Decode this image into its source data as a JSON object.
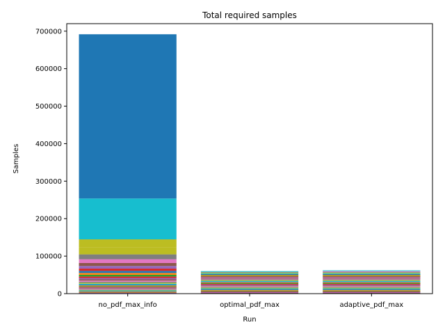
{
  "chart_data": {
    "type": "bar",
    "stacked": true,
    "title": "Total required samples",
    "xlabel": "Run",
    "ylabel": "Samples",
    "categories": [
      "no_pdf_max_info",
      "optimal_pdf_max",
      "adaptive_pdf_max"
    ],
    "ylim": [
      0,
      720000
    ],
    "yticks": [
      0,
      100000,
      200000,
      300000,
      400000,
      500000,
      600000,
      700000
    ],
    "ytick_labels": [
      "0",
      "100000",
      "200000",
      "300000",
      "400000",
      "500000",
      "600000",
      "700000"
    ],
    "grid": false,
    "legend": "none",
    "palette": [
      "#1f77b4",
      "#ff7f0e",
      "#2ca02c",
      "#d62728",
      "#9467bd",
      "#8c564b",
      "#e377c2",
      "#7f7f7f",
      "#bcbd22",
      "#17becf"
    ],
    "stacks": [
      {
        "category": "no_pdf_max_info",
        "segments": [
          {
            "value": 1000,
            "color": "#8c564b"
          },
          {
            "value": 1000,
            "color": "#9467bd"
          },
          {
            "value": 1200,
            "color": "#d62728"
          },
          {
            "value": 1200,
            "color": "#2ca02c"
          },
          {
            "value": 1300,
            "color": "#ff7f0e"
          },
          {
            "value": 1300,
            "color": "#1f77b4"
          },
          {
            "value": 1400,
            "color": "#17becf"
          },
          {
            "value": 1400,
            "color": "#bcbd22"
          },
          {
            "value": 1500,
            "color": "#7f7f7f"
          },
          {
            "value": 1500,
            "color": "#e377c2"
          },
          {
            "value": 1600,
            "color": "#8c564b"
          },
          {
            "value": 1700,
            "color": "#9467bd"
          },
          {
            "value": 1800,
            "color": "#d62728"
          },
          {
            "value": 1900,
            "color": "#2ca02c"
          },
          {
            "value": 2000,
            "color": "#ff7f0e"
          },
          {
            "value": 2200,
            "color": "#1f77b4"
          },
          {
            "value": 2400,
            "color": "#17becf"
          },
          {
            "value": 2600,
            "color": "#bcbd22"
          },
          {
            "value": 2800,
            "color": "#7f7f7f"
          },
          {
            "value": 3000,
            "color": "#e377c2"
          },
          {
            "value": 3300,
            "color": "#8c564b"
          },
          {
            "value": 3600,
            "color": "#9467bd"
          },
          {
            "value": 4000,
            "color": "#d62728"
          },
          {
            "value": 4500,
            "color": "#2ca02c"
          },
          {
            "value": 5000,
            "color": "#ff7f0e"
          },
          {
            "value": 5500,
            "color": "#1f77b4"
          },
          {
            "value": 6000,
            "color": "#d62728"
          },
          {
            "value": 7000,
            "color": "#9467bd"
          },
          {
            "value": 8000,
            "color": "#8c564b"
          },
          {
            "value": 10000,
            "color": "#e377c2"
          },
          {
            "value": 13000,
            "color": "#7f7f7f"
          },
          {
            "value": 18000,
            "color": "#bcbd22"
          },
          {
            "value": 22000,
            "color": "#bcbd22"
          },
          {
            "value": 109000,
            "color": "#17becf"
          },
          {
            "value": 438000,
            "color": "#1f77b4"
          }
        ]
      },
      {
        "category": "optimal_pdf_max",
        "segments": [
          {
            "value": 2000,
            "color": "#8c564b"
          },
          {
            "value": 2000,
            "color": "#9467bd"
          },
          {
            "value": 2000,
            "color": "#d62728"
          },
          {
            "value": 2000,
            "color": "#2ca02c"
          },
          {
            "value": 2000,
            "color": "#ff7f0e"
          },
          {
            "value": 2000,
            "color": "#1f77b4"
          },
          {
            "value": 2000,
            "color": "#17becf"
          },
          {
            "value": 2000,
            "color": "#bcbd22"
          },
          {
            "value": 2000,
            "color": "#7f7f7f"
          },
          {
            "value": 2000,
            "color": "#e377c2"
          },
          {
            "value": 2000,
            "color": "#8c564b"
          },
          {
            "value": 2000,
            "color": "#9467bd"
          },
          {
            "value": 2000,
            "color": "#d62728"
          },
          {
            "value": 2000,
            "color": "#2ca02c"
          },
          {
            "value": 2000,
            "color": "#ff7f0e"
          },
          {
            "value": 2000,
            "color": "#1f77b4"
          },
          {
            "value": 2000,
            "color": "#17becf"
          },
          {
            "value": 2000,
            "color": "#bcbd22"
          },
          {
            "value": 2000,
            "color": "#7f7f7f"
          },
          {
            "value": 2000,
            "color": "#e377c2"
          },
          {
            "value": 2000,
            "color": "#8c564b"
          },
          {
            "value": 2000,
            "color": "#9467bd"
          },
          {
            "value": 2000,
            "color": "#d62728"
          },
          {
            "value": 2000,
            "color": "#2ca02c"
          },
          {
            "value": 2000,
            "color": "#ff7f0e"
          },
          {
            "value": 2000,
            "color": "#1f77b4"
          },
          {
            "value": 2000,
            "color": "#17becf"
          },
          {
            "value": 2000,
            "color": "#bcbd22"
          },
          {
            "value": 2000,
            "color": "#7f7f7f"
          },
          {
            "value": 2000,
            "color": "#17becf"
          }
        ]
      },
      {
        "category": "adaptive_pdf_max",
        "segments": [
          {
            "value": 2000,
            "color": "#8c564b"
          },
          {
            "value": 2000,
            "color": "#9467bd"
          },
          {
            "value": 2000,
            "color": "#d62728"
          },
          {
            "value": 2000,
            "color": "#2ca02c"
          },
          {
            "value": 2000,
            "color": "#ff7f0e"
          },
          {
            "value": 2000,
            "color": "#1f77b4"
          },
          {
            "value": 2000,
            "color": "#17becf"
          },
          {
            "value": 2000,
            "color": "#bcbd22"
          },
          {
            "value": 2000,
            "color": "#7f7f7f"
          },
          {
            "value": 2000,
            "color": "#e377c2"
          },
          {
            "value": 2000,
            "color": "#8c564b"
          },
          {
            "value": 2000,
            "color": "#9467bd"
          },
          {
            "value": 2000,
            "color": "#d62728"
          },
          {
            "value": 2000,
            "color": "#2ca02c"
          },
          {
            "value": 2000,
            "color": "#ff7f0e"
          },
          {
            "value": 2000,
            "color": "#1f77b4"
          },
          {
            "value": 2000,
            "color": "#17becf"
          },
          {
            "value": 2000,
            "color": "#bcbd22"
          },
          {
            "value": 2000,
            "color": "#7f7f7f"
          },
          {
            "value": 2000,
            "color": "#e377c2"
          },
          {
            "value": 2000,
            "color": "#8c564b"
          },
          {
            "value": 2000,
            "color": "#9467bd"
          },
          {
            "value": 2000,
            "color": "#d62728"
          },
          {
            "value": 2000,
            "color": "#2ca02c"
          },
          {
            "value": 2000,
            "color": "#ff7f0e"
          },
          {
            "value": 2000,
            "color": "#1f77b4"
          },
          {
            "value": 2000,
            "color": "#17becf"
          },
          {
            "value": 2000,
            "color": "#bcbd22"
          },
          {
            "value": 2000,
            "color": "#7f7f7f"
          },
          {
            "value": 2000,
            "color": "#e377c2"
          },
          {
            "value": 2000,
            "color": "#17becf"
          }
        ]
      }
    ]
  }
}
